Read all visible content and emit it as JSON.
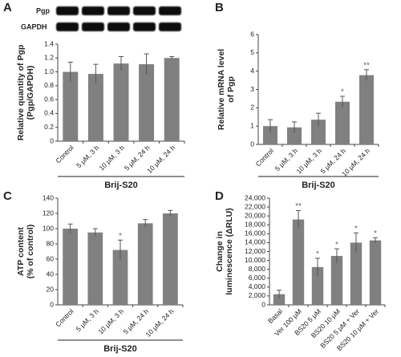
{
  "chart_data": [
    {
      "type": "bar",
      "panel_label": "A",
      "blot_labels": [
        "Pgp",
        "GAPDH"
      ],
      "ylabel": [
        "Relative quantity of Pgp",
        "(Pgp/GAPDH)"
      ],
      "categories": [
        "Control",
        "5 μM, 3 h",
        "10 μM, 3 h",
        "5 μM, 24 h",
        "10 μM, 24 h"
      ],
      "values": [
        1.0,
        0.97,
        1.12,
        1.11,
        1.2
      ],
      "errors": [
        0.14,
        0.14,
        0.1,
        0.15,
        0.02
      ],
      "annotations": [
        null,
        null,
        null,
        null,
        null
      ],
      "group_label": "Brij-S20",
      "color": "#808080",
      "ylim": [
        0,
        1.4
      ],
      "yticks": [
        0,
        0.2,
        0.4,
        0.6,
        0.8,
        {
          "value": 1,
          "label": "1.0"
        },
        1.2,
        1.4
      ]
    },
    {
      "type": "bar",
      "panel_label": "B",
      "ylabel": [
        "Relative mRNA level",
        "of Pgp"
      ],
      "categories": [
        "Control",
        "5 μM, 3 h",
        "10 μM, 3 h",
        "5 μM, 24 h",
        "10 μM, 24 h"
      ],
      "values": [
        1.0,
        0.93,
        1.35,
        2.33,
        3.78
      ],
      "errors": [
        0.35,
        0.3,
        0.35,
        0.3,
        0.3
      ],
      "annotations": [
        null,
        null,
        null,
        "*",
        "**"
      ],
      "group_label": "Brij-S20",
      "color": "#808080",
      "ylim": [
        0,
        6
      ],
      "yticks": [
        0,
        1,
        2,
        3,
        4,
        5,
        6
      ]
    },
    {
      "type": "bar",
      "panel_label": "C",
      "ylabel": [
        "ATP content",
        "(% of control)"
      ],
      "categories": [
        "Control",
        "5 μM, 3 h",
        "10 μM, 3 h",
        "5 μM, 24 h",
        "10 μM, 24 h"
      ],
      "values": [
        100,
        95,
        72,
        107,
        120
      ],
      "errors": [
        6,
        5,
        13,
        5,
        4
      ],
      "annotations": [
        null,
        null,
        "*",
        null,
        null
      ],
      "group_label": "Brij-S20",
      "color": "#808080",
      "ylim": [
        0,
        140
      ],
      "yticks": [
        0,
        20,
        40,
        60,
        80,
        100,
        120,
        140
      ]
    },
    {
      "type": "bar",
      "panel_label": "D",
      "ylabel": [
        "Change in",
        "luminescence (ΔRLU)"
      ],
      "categories": [
        "Basal",
        "Ver 100 μM",
        "BS20 5 μM",
        "BS20 10 μM",
        "BS20 5 μM + Ver",
        "BS20 10 μM + Ver"
      ],
      "values": [
        2400,
        19200,
        8500,
        11000,
        14000,
        14500
      ],
      "errors": [
        900,
        2000,
        2000,
        1600,
        2200,
        600
      ],
      "annotations": [
        null,
        "**",
        "*",
        "*",
        "*",
        "*"
      ],
      "color": "#808080",
      "ylim": [
        0,
        24000
      ],
      "yticks": [
        0,
        {
          "value": 2000,
          "label": "2,000"
        },
        {
          "value": 4000,
          "label": "4,000"
        },
        {
          "value": 6000,
          "label": "6,000"
        },
        {
          "value": 8000,
          "label": "8,000"
        },
        {
          "value": 10000,
          "label": "10,000"
        },
        {
          "value": 12000,
          "label": "12,000"
        },
        {
          "value": 14000,
          "label": "14,000"
        },
        {
          "value": 16000,
          "label": "16,000"
        },
        {
          "value": 18000,
          "label": "18,000"
        },
        {
          "value": 20000,
          "label": "20,000"
        },
        {
          "value": 22000,
          "label": "22,000"
        },
        {
          "value": 24000,
          "label": "24,000"
        }
      ]
    }
  ]
}
